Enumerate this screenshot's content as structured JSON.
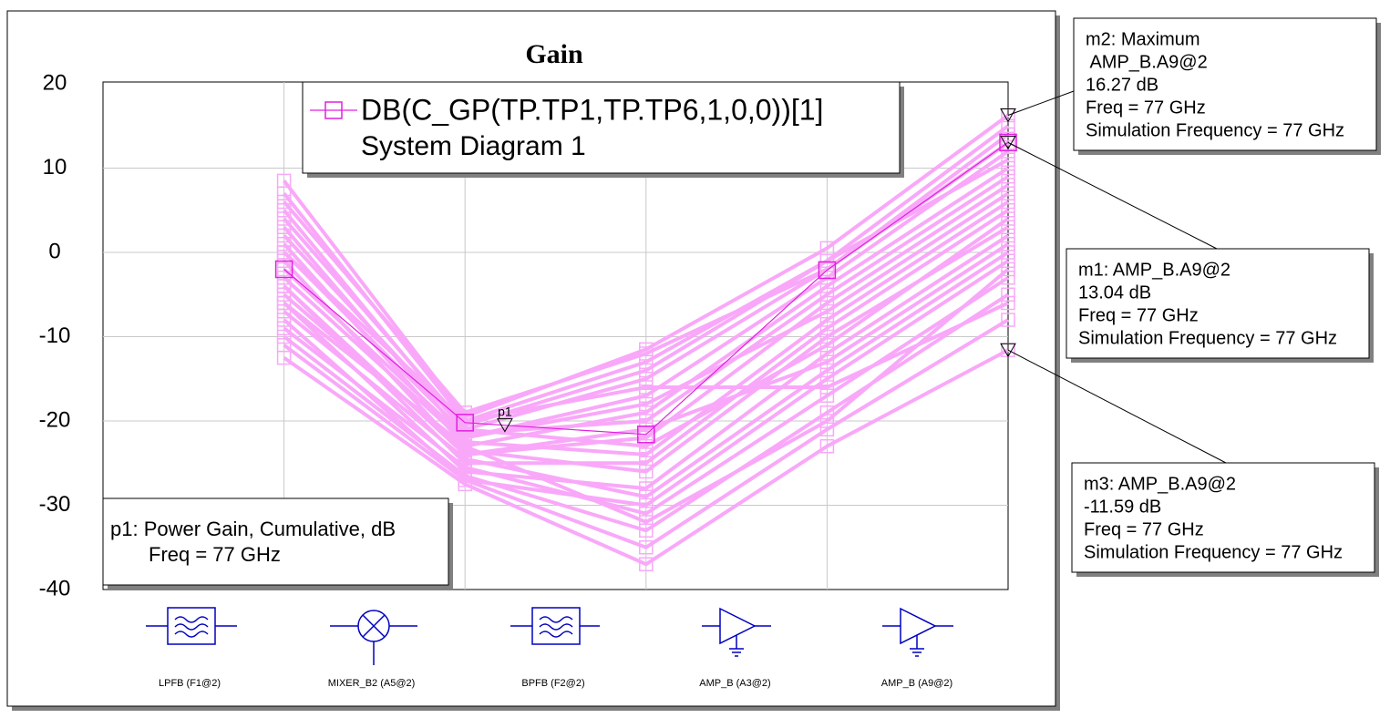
{
  "chart_data": {
    "type": "line",
    "title": "Gain",
    "categories": [
      "LPFB (F1@2)",
      "MIXER_B2 (A5@2)",
      "BPFB (F2@2)",
      "AMP_B (A3@2)",
      "AMP_B (A9@2)"
    ],
    "series": [
      {
        "name": "DB(C_GP(TP.TP1,TP.TP6,1,0,0))[1]",
        "color": "#e020e0",
        "values": [
          -2,
          -20.2,
          -21.6,
          -2.1,
          13.04
        ]
      }
    ],
    "legend_subtitle": "System Diagram 1",
    "traces": {
      "color": "#f9a8f9",
      "values": [
        [
          8.5,
          -19.5,
          -11.5,
          0.5,
          16.27
        ],
        [
          7,
          -20,
          -13,
          -1,
          15
        ],
        [
          5,
          -21,
          -15,
          -2,
          14
        ],
        [
          3,
          -22,
          -17,
          -3,
          12
        ],
        [
          1,
          -23,
          -19,
          -4,
          10
        ],
        [
          0,
          -21.5,
          -20,
          -5,
          9
        ],
        [
          -1,
          -24,
          -22,
          -6,
          8
        ],
        [
          -3,
          -22.5,
          -24,
          -8,
          6
        ],
        [
          -4,
          -25,
          -25,
          -9,
          5
        ],
        [
          -5,
          -23.5,
          -26,
          -10,
          3
        ],
        [
          -6,
          -26,
          -28,
          -12,
          2
        ],
        [
          -7,
          -24.5,
          -29,
          -14,
          0
        ],
        [
          -8,
          -27,
          -30,
          -15,
          -1
        ],
        [
          -9,
          -25.5,
          -31,
          -17,
          -3
        ],
        [
          -10,
          -26.5,
          -33,
          -19,
          -5
        ],
        [
          -11,
          -27,
          -35,
          -21,
          -8
        ],
        [
          -12.5,
          -27.5,
          -37,
          -23,
          -11.59
        ],
        [
          6,
          -19,
          -12,
          -2,
          13
        ],
        [
          4,
          -20.5,
          -14,
          -1,
          11
        ],
        [
          -2,
          -22,
          -18,
          -7,
          7
        ],
        [
          2,
          -21,
          -23,
          -11,
          4
        ],
        [
          -6,
          -23,
          -32,
          -20,
          -2
        ],
        [
          -4,
          -24,
          -21,
          -13,
          1
        ],
        [
          0,
          -20,
          -16,
          -16,
          -6
        ]
      ]
    },
    "ylim": [
      -40,
      20
    ],
    "yticks": [
      -40,
      -30,
      -20,
      -10,
      0,
      10,
      20
    ],
    "grid": true,
    "p1": {
      "label": "p1",
      "value": -20.5,
      "lines": [
        "p1: Power Gain, Cumulative, dB",
        "Freq = 77 GHz"
      ]
    },
    "markers": [
      {
        "lines": [
          "m2: Maximum",
          " AMP_B.A9@2"
        ],
        "value": 16.27,
        "value_label": "16.27 dB",
        "notes": [
          "Freq = 77 GHz",
          "Simulation Frequency = 77 GHz"
        ]
      },
      {
        "lines": [
          "m1: AMP_B.A9@2"
        ],
        "value": 13.04,
        "value_label": "13.04 dB",
        "notes": [
          "Freq = 77 GHz",
          "Simulation Frequency = 77 GHz"
        ]
      },
      {
        "lines": [
          "m3: AMP_B.A9@2"
        ],
        "value": -11.59,
        "value_label": "-11.59 dB",
        "notes": [
          "Freq = 77 GHz",
          "Simulation Frequency = 77 GHz"
        ]
      }
    ]
  }
}
